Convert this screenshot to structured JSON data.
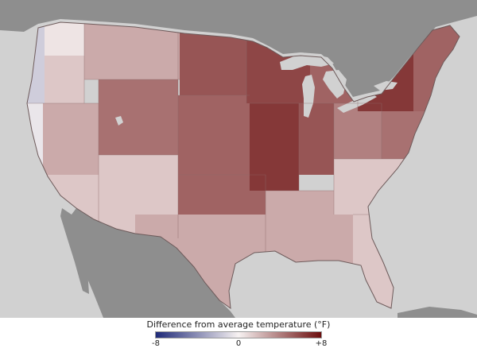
{
  "legend": {
    "title": "Difference from average temperature (°F)",
    "ticks": [
      "-8",
      "0",
      "+8"
    ],
    "scale_min": -8,
    "scale_max": 8,
    "color_cold": "#1f2a78",
    "color_neutral": "#f7f2f2",
    "color_warm": "#6b0d0d"
  },
  "map": {
    "land_color": "#8e8e8e",
    "water_color": "#d1d1d1",
    "regions": [
      {
        "name": "pacific-northwest-coast",
        "anomaly": -1.5
      },
      {
        "name": "california-coast",
        "anomaly": -0.5
      },
      {
        "name": "washington-interior",
        "anomaly": 0.5
      },
      {
        "name": "oregon-interior",
        "anomaly": 1.5
      },
      {
        "name": "idaho-montana",
        "anomaly": 2.5
      },
      {
        "name": "nevada",
        "anomaly": 2.5
      },
      {
        "name": "southern-california",
        "anomaly": 1.5
      },
      {
        "name": "utah-wyoming",
        "anomaly": 4.5
      },
      {
        "name": "arizona-new-mexico",
        "anomaly": 1.5
      },
      {
        "name": "colorado",
        "anomaly": 4
      },
      {
        "name": "dakotas",
        "anomaly": 5.5
      },
      {
        "name": "nebraska-kansas",
        "anomaly": 5
      },
      {
        "name": "oklahoma",
        "anomaly": 5
      },
      {
        "name": "texas",
        "anomaly": 2.5
      },
      {
        "name": "minnesota-wisconsin",
        "anomaly": 6
      },
      {
        "name": "iowa-missouri",
        "anomaly": 6.5
      },
      {
        "name": "illinois-indiana",
        "anomaly": 5.5
      },
      {
        "name": "michigan",
        "anomaly": 5
      },
      {
        "name": "ohio-valley",
        "anomaly": 4
      },
      {
        "name": "deep-south",
        "anomaly": 2.5
      },
      {
        "name": "carolinas-virginia",
        "anomaly": 1.5
      },
      {
        "name": "florida",
        "anomaly": 1.5
      },
      {
        "name": "mid-atlantic",
        "anomaly": 4.5
      },
      {
        "name": "new-york-pennsylvania",
        "anomaly": 6.5
      },
      {
        "name": "new-england",
        "anomaly": 5
      }
    ]
  }
}
